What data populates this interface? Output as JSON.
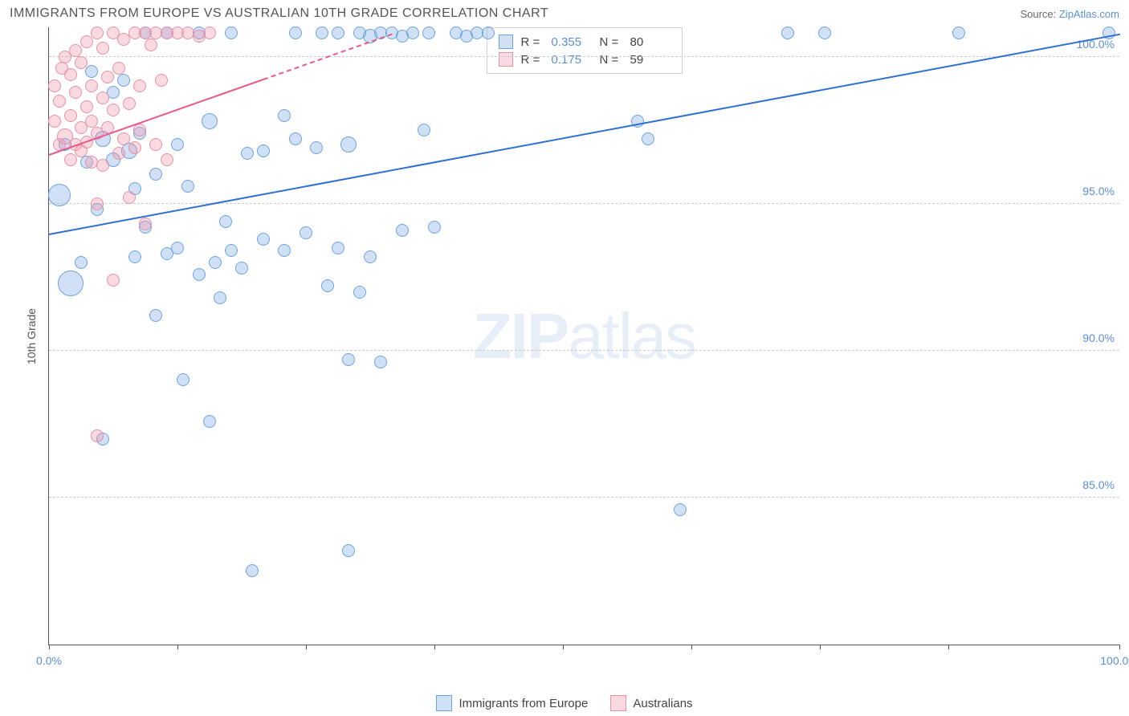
{
  "title": "IMMIGRANTS FROM EUROPE VS AUSTRALIAN 10TH GRADE CORRELATION CHART",
  "source_prefix": "Source: ",
  "source_link": "ZipAtlas.com",
  "ylabel": "10th Grade",
  "watermark_bold": "ZIP",
  "watermark_light": "atlas",
  "chart": {
    "type": "scatter",
    "xlim": [
      0,
      100
    ],
    "ylim": [
      80,
      101
    ],
    "x_ticks": [
      0,
      12,
      24,
      36,
      48,
      60,
      72,
      84,
      100
    ],
    "x_labels_shown": {
      "0": "0.0%",
      "100": "100.0%"
    },
    "y_ticks": [
      85,
      90,
      95,
      100
    ],
    "y_labels": {
      "85": "85.0%",
      "90": "90.0%",
      "95": "95.0%",
      "100": "100.0%"
    },
    "background_color": "#ffffff",
    "grid_color": "#cccccc",
    "axis_color": "#555555",
    "tick_label_color": "#5b8fd6",
    "series": [
      {
        "name": "Immigrants from Europe",
        "fill_color": "rgba(120,170,230,0.35)",
        "stroke_color": "#6fa3e0",
        "line_color": "#2e6fd6",
        "R": "0.355",
        "N": "80",
        "trend": {
          "x1": 0,
          "y1": 94.0,
          "x2": 100,
          "y2": 100.8,
          "dash_from_x": null
        },
        "points": [
          {
            "x": 1,
            "y": 95.3,
            "r": 14
          },
          {
            "x": 2,
            "y": 92.3,
            "r": 16
          },
          {
            "x": 1.5,
            "y": 97.0,
            "r": 8
          },
          {
            "x": 3,
            "y": 93.0,
            "r": 8
          },
          {
            "x": 3.5,
            "y": 96.4,
            "r": 8
          },
          {
            "x": 4,
            "y": 99.5,
            "r": 8
          },
          {
            "x": 4.5,
            "y": 94.8,
            "r": 8
          },
          {
            "x": 5,
            "y": 97.2,
            "r": 10
          },
          {
            "x": 5,
            "y": 87.0,
            "r": 8
          },
          {
            "x": 6,
            "y": 96.5,
            "r": 9
          },
          {
            "x": 6,
            "y": 98.8,
            "r": 8
          },
          {
            "x": 7,
            "y": 99.2,
            "r": 8
          },
          {
            "x": 7.5,
            "y": 96.8,
            "r": 10
          },
          {
            "x": 8,
            "y": 95.5,
            "r": 8
          },
          {
            "x": 8,
            "y": 93.2,
            "r": 8
          },
          {
            "x": 8.5,
            "y": 97.4,
            "r": 8
          },
          {
            "x": 9,
            "y": 100.8,
            "r": 8
          },
          {
            "x": 9,
            "y": 94.2,
            "r": 8
          },
          {
            "x": 10,
            "y": 96.0,
            "r": 8
          },
          {
            "x": 10,
            "y": 91.2,
            "r": 8
          },
          {
            "x": 11,
            "y": 93.3,
            "r": 8
          },
          {
            "x": 11,
            "y": 100.8,
            "r": 8
          },
          {
            "x": 12,
            "y": 97.0,
            "r": 8
          },
          {
            "x": 12,
            "y": 93.5,
            "r": 8
          },
          {
            "x": 12.5,
            "y": 89.0,
            "r": 8
          },
          {
            "x": 13,
            "y": 95.6,
            "r": 8
          },
          {
            "x": 14,
            "y": 92.6,
            "r": 8
          },
          {
            "x": 14,
            "y": 100.8,
            "r": 8
          },
          {
            "x": 15,
            "y": 97.8,
            "r": 10
          },
          {
            "x": 15,
            "y": 87.6,
            "r": 8
          },
          {
            "x": 15.5,
            "y": 93.0,
            "r": 8
          },
          {
            "x": 16,
            "y": 91.8,
            "r": 8
          },
          {
            "x": 16.5,
            "y": 94.4,
            "r": 8
          },
          {
            "x": 17,
            "y": 93.4,
            "r": 8
          },
          {
            "x": 17,
            "y": 100.8,
            "r": 8
          },
          {
            "x": 18,
            "y": 92.8,
            "r": 8
          },
          {
            "x": 18.5,
            "y": 96.7,
            "r": 8
          },
          {
            "x": 19,
            "y": 82.5,
            "r": 8
          },
          {
            "x": 20,
            "y": 93.8,
            "r": 8
          },
          {
            "x": 20,
            "y": 96.8,
            "r": 8
          },
          {
            "x": 22,
            "y": 98.0,
            "r": 8
          },
          {
            "x": 22,
            "y": 93.4,
            "r": 8
          },
          {
            "x": 23,
            "y": 97.2,
            "r": 8
          },
          {
            "x": 23,
            "y": 100.8,
            "r": 8
          },
          {
            "x": 24,
            "y": 94.0,
            "r": 8
          },
          {
            "x": 25,
            "y": 96.9,
            "r": 8
          },
          {
            "x": 25.5,
            "y": 100.8,
            "r": 8
          },
          {
            "x": 26,
            "y": 92.2,
            "r": 8
          },
          {
            "x": 27,
            "y": 100.8,
            "r": 8
          },
          {
            "x": 27,
            "y": 93.5,
            "r": 8
          },
          {
            "x": 28,
            "y": 97.0,
            "r": 10
          },
          {
            "x": 28,
            "y": 89.7,
            "r": 8
          },
          {
            "x": 28,
            "y": 83.2,
            "r": 8
          },
          {
            "x": 29,
            "y": 100.8,
            "r": 8
          },
          {
            "x": 29,
            "y": 92.0,
            "r": 8
          },
          {
            "x": 30,
            "y": 100.7,
            "r": 9
          },
          {
            "x": 30,
            "y": 93.2,
            "r": 8
          },
          {
            "x": 31,
            "y": 89.6,
            "r": 8
          },
          {
            "x": 31,
            "y": 100.8,
            "r": 8
          },
          {
            "x": 32,
            "y": 100.8,
            "r": 8
          },
          {
            "x": 33,
            "y": 94.1,
            "r": 8
          },
          {
            "x": 33,
            "y": 100.7,
            "r": 8
          },
          {
            "x": 34,
            "y": 100.8,
            "r": 8
          },
          {
            "x": 35,
            "y": 97.5,
            "r": 8
          },
          {
            "x": 35.5,
            "y": 100.8,
            "r": 8
          },
          {
            "x": 36,
            "y": 94.2,
            "r": 8
          },
          {
            "x": 38,
            "y": 100.8,
            "r": 8
          },
          {
            "x": 39,
            "y": 100.7,
            "r": 8
          },
          {
            "x": 40,
            "y": 100.8,
            "r": 8
          },
          {
            "x": 41,
            "y": 100.8,
            "r": 8
          },
          {
            "x": 55,
            "y": 97.8,
            "r": 8
          },
          {
            "x": 56,
            "y": 97.2,
            "r": 8
          },
          {
            "x": 59,
            "y": 84.6,
            "r": 8
          },
          {
            "x": 69,
            "y": 100.8,
            "r": 8
          },
          {
            "x": 72.5,
            "y": 100.8,
            "r": 8
          },
          {
            "x": 85,
            "y": 100.8,
            "r": 8
          },
          {
            "x": 99,
            "y": 100.8,
            "r": 8
          }
        ]
      },
      {
        "name": "Australians",
        "fill_color": "rgba(240,150,170,0.35)",
        "stroke_color": "#e890a8",
        "line_color": "#e85a8a",
        "R": "0.175",
        "N": "59",
        "trend": {
          "x1": 0,
          "y1": 96.7,
          "x2": 32,
          "y2": 100.8,
          "dash_from_x": 20
        },
        "points": [
          {
            "x": 0.5,
            "y": 99.0,
            "r": 8
          },
          {
            "x": 0.5,
            "y": 97.8,
            "r": 8
          },
          {
            "x": 1,
            "y": 98.5,
            "r": 8
          },
          {
            "x": 1,
            "y": 97.0,
            "r": 8
          },
          {
            "x": 1.2,
            "y": 99.6,
            "r": 8
          },
          {
            "x": 1.5,
            "y": 97.3,
            "r": 10
          },
          {
            "x": 1.5,
            "y": 100.0,
            "r": 8
          },
          {
            "x": 2,
            "y": 96.5,
            "r": 8
          },
          {
            "x": 2,
            "y": 98.0,
            "r": 8
          },
          {
            "x": 2,
            "y": 99.4,
            "r": 8
          },
          {
            "x": 2.5,
            "y": 97.0,
            "r": 8
          },
          {
            "x": 2.5,
            "y": 100.2,
            "r": 8
          },
          {
            "x": 2.5,
            "y": 98.8,
            "r": 8
          },
          {
            "x": 3,
            "y": 97.6,
            "r": 8
          },
          {
            "x": 3,
            "y": 99.8,
            "r": 8
          },
          {
            "x": 3,
            "y": 96.8,
            "r": 8
          },
          {
            "x": 3.5,
            "y": 98.3,
            "r": 8
          },
          {
            "x": 3.5,
            "y": 97.1,
            "r": 8
          },
          {
            "x": 3.5,
            "y": 100.5,
            "r": 8
          },
          {
            "x": 4,
            "y": 96.4,
            "r": 8
          },
          {
            "x": 4,
            "y": 99.0,
            "r": 8
          },
          {
            "x": 4,
            "y": 97.8,
            "r": 8
          },
          {
            "x": 4.5,
            "y": 100.8,
            "r": 8
          },
          {
            "x": 4.5,
            "y": 97.4,
            "r": 8
          },
          {
            "x": 4.5,
            "y": 95.0,
            "r": 8
          },
          {
            "x": 5,
            "y": 98.6,
            "r": 8
          },
          {
            "x": 5,
            "y": 100.3,
            "r": 8
          },
          {
            "x": 5,
            "y": 96.3,
            "r": 8
          },
          {
            "x": 5.5,
            "y": 99.3,
            "r": 8
          },
          {
            "x": 5.5,
            "y": 97.6,
            "r": 8
          },
          {
            "x": 6,
            "y": 92.4,
            "r": 8
          },
          {
            "x": 6,
            "y": 98.2,
            "r": 8
          },
          {
            "x": 6,
            "y": 100.8,
            "r": 8
          },
          {
            "x": 6.5,
            "y": 96.7,
            "r": 8
          },
          {
            "x": 6.5,
            "y": 99.6,
            "r": 8
          },
          {
            "x": 7,
            "y": 100.6,
            "r": 8
          },
          {
            "x": 7,
            "y": 97.2,
            "r": 8
          },
          {
            "x": 7.5,
            "y": 95.2,
            "r": 8
          },
          {
            "x": 7.5,
            "y": 98.4,
            "r": 8
          },
          {
            "x": 8,
            "y": 100.8,
            "r": 8
          },
          {
            "x": 8,
            "y": 96.9,
            "r": 8
          },
          {
            "x": 8.5,
            "y": 99.0,
            "r": 8
          },
          {
            "x": 8.5,
            "y": 97.5,
            "r": 8
          },
          {
            "x": 9,
            "y": 100.8,
            "r": 8
          },
          {
            "x": 9,
            "y": 94.3,
            "r": 8
          },
          {
            "x": 9.5,
            "y": 100.4,
            "r": 8
          },
          {
            "x": 10,
            "y": 100.8,
            "r": 8
          },
          {
            "x": 10,
            "y": 97.0,
            "r": 8
          },
          {
            "x": 10.5,
            "y": 99.2,
            "r": 8
          },
          {
            "x": 11,
            "y": 100.8,
            "r": 8
          },
          {
            "x": 11,
            "y": 96.5,
            "r": 8
          },
          {
            "x": 12,
            "y": 100.8,
            "r": 8
          },
          {
            "x": 13,
            "y": 100.8,
            "r": 8
          },
          {
            "x": 14,
            "y": 100.7,
            "r": 8
          },
          {
            "x": 15,
            "y": 100.8,
            "r": 8
          },
          {
            "x": 4.5,
            "y": 87.1,
            "r": 8
          }
        ]
      }
    ]
  },
  "stats_box": {
    "R_label": "R =",
    "N_label": "N ="
  },
  "legend": {
    "items": [
      {
        "label": "Immigrants from Europe",
        "fill": "rgba(120,170,230,0.35)",
        "stroke": "#6fa3e0"
      },
      {
        "label": "Australians",
        "fill": "rgba(240,150,170,0.35)",
        "stroke": "#e890a8"
      }
    ]
  }
}
